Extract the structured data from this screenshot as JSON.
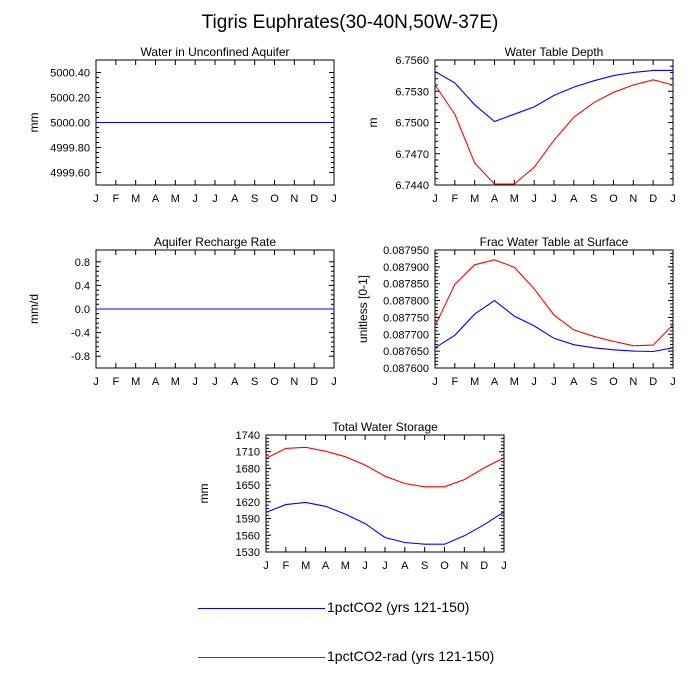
{
  "title": "Tigris Euphrates(30-40N,50W-37E)",
  "colors": {
    "blue": "#0000ff",
    "red": "#ff0000"
  },
  "legend": [
    {
      "label": "1pctCO2 (yrs 121-150)",
      "color": "#0000ff"
    },
    {
      "label": "1pctCO2-rad (yrs 121-150)",
      "color": "#ff0000"
    }
  ],
  "chart_data": [
    {
      "type": "line",
      "title": "Water in Unconfined Aquifer",
      "ylabel": "mm",
      "categories": [
        "J",
        "F",
        "M",
        "A",
        "M",
        "J",
        "J",
        "A",
        "S",
        "O",
        "N",
        "D",
        "J"
      ],
      "ylim": [
        4999.5,
        5000.5
      ],
      "yticks": [
        4999.6,
        4999.8,
        5000.0,
        5000.2,
        5000.4
      ],
      "ytick_labels": [
        "4999.60",
        "4999.80",
        "5000.00",
        "5000.20",
        "5000.40"
      ],
      "series": [
        {
          "name": "1pctCO2 (yrs 121-150)",
          "color": "#0000ff",
          "values": [
            5000,
            5000,
            5000,
            5000,
            5000,
            5000,
            5000,
            5000,
            5000,
            5000,
            5000,
            5000,
            5000
          ]
        },
        {
          "name": "1pctCO2-rad (yrs 121-150)",
          "color": "#ff0000",
          "values": [
            5000,
            5000,
            5000,
            5000,
            5000,
            5000,
            5000,
            5000,
            5000,
            5000,
            5000,
            5000,
            5000
          ]
        }
      ]
    },
    {
      "type": "line",
      "title": "Water Table Depth",
      "ylabel": "m",
      "categories": [
        "J",
        "F",
        "M",
        "A",
        "M",
        "J",
        "J",
        "A",
        "S",
        "O",
        "N",
        "D",
        "J"
      ],
      "ylim": [
        6.744,
        6.756
      ],
      "yticks": [
        6.744,
        6.747,
        6.75,
        6.753,
        6.756
      ],
      "ytick_labels": [
        "6.7440",
        "6.7470",
        "6.7500",
        "6.7530",
        "6.7560"
      ],
      "series": [
        {
          "name": "1pctCO2 (yrs 121-150)",
          "color": "#0000ff",
          "values": [
            6.7549,
            6.7538,
            6.7517,
            6.7501,
            6.7508,
            6.7515,
            6.7526,
            6.7534,
            6.754,
            6.7545,
            6.7548,
            6.755,
            6.755
          ]
        },
        {
          "name": "1pctCO2-rad (yrs 121-150)",
          "color": "#ff0000",
          "values": [
            6.7536,
            6.7508,
            6.7461,
            6.7441,
            6.7441,
            6.7457,
            6.7483,
            6.7505,
            6.7519,
            6.7529,
            6.7536,
            6.7541,
            6.7536
          ]
        }
      ]
    },
    {
      "type": "line",
      "title": "Aquifer Recharge Rate",
      "ylabel": "mm/d",
      "categories": [
        "J",
        "F",
        "M",
        "A",
        "M",
        "J",
        "J",
        "A",
        "S",
        "O",
        "N",
        "D",
        "J"
      ],
      "ylim": [
        -1.0,
        1.0
      ],
      "yticks": [
        -0.8,
        -0.4,
        0.0,
        0.4,
        0.8
      ],
      "ytick_labels": [
        "-0.8",
        "-0.4",
        "0.0",
        "0.4",
        "0.8"
      ],
      "series": [
        {
          "name": "1pctCO2 (yrs 121-150)",
          "color": "#0000ff",
          "values": [
            0,
            0,
            0,
            0,
            0,
            0,
            0,
            0,
            0,
            0,
            0,
            0,
            0
          ]
        },
        {
          "name": "1pctCO2-rad (yrs 121-150)",
          "color": "#ff0000",
          "values": [
            0,
            0,
            0,
            0,
            0,
            0,
            0,
            0,
            0,
            0,
            0,
            0,
            0
          ]
        }
      ]
    },
    {
      "type": "line",
      "title": "Frac Water Table at Surface",
      "ylabel": "unitless [0-1]",
      "categories": [
        "J",
        "F",
        "M",
        "A",
        "M",
        "J",
        "J",
        "A",
        "S",
        "O",
        "N",
        "D",
        "J"
      ],
      "ylim": [
        0.0876,
        0.0879
      ],
      "yticks": [
        0.0876,
        0.08765,
        0.0877,
        0.08775,
        0.0878,
        0.08785,
        0.0879,
        0.08795
      ],
      "ytick_labels": [
        "0.087600",
        "0.087650",
        "0.087700",
        "0.087750",
        "0.087800",
        "0.087850",
        "0.087900",
        "0.087950"
      ],
      "ylim_top": 0.08795,
      "series": [
        {
          "name": "1pctCO2 (yrs 121-150)",
          "color": "#0000ff",
          "values": [
            0.08766,
            0.087697,
            0.08776,
            0.0878,
            0.087754,
            0.087725,
            0.087688,
            0.087669,
            0.08766,
            0.087654,
            0.08765,
            0.087649,
            0.08766
          ]
        },
        {
          "name": "1pctCO2-rad (yrs 121-150)",
          "color": "#ff0000",
          "values": [
            0.087724,
            0.087848,
            0.087906,
            0.087921,
            0.087899,
            0.087835,
            0.087757,
            0.087713,
            0.087694,
            0.087679,
            0.087666,
            0.087668,
            0.087728
          ]
        }
      ]
    },
    {
      "type": "line",
      "title": "Total Water Storage",
      "ylabel": "mm",
      "categories": [
        "J",
        "F",
        "M",
        "A",
        "M",
        "J",
        "J",
        "A",
        "S",
        "O",
        "N",
        "D",
        "J"
      ],
      "ylim": [
        1530,
        1740
      ],
      "yticks": [
        1530,
        1560,
        1590,
        1620,
        1650,
        1680,
        1710,
        1740
      ],
      "ytick_labels": [
        "1530",
        "1560",
        "1590",
        "1620",
        "1650",
        "1680",
        "1710",
        "1740"
      ],
      "series": [
        {
          "name": "1pctCO2 (yrs 121-150)",
          "color": "#0000ff",
          "values": [
            1601,
            1615,
            1619,
            1612,
            1598,
            1581,
            1556,
            1547,
            1544,
            1544,
            1559,
            1579,
            1602
          ]
        },
        {
          "name": "1pctCO2-rad (yrs 121-150)",
          "color": "#ff0000",
          "values": [
            1698,
            1716,
            1718,
            1711,
            1701,
            1686,
            1666,
            1653,
            1647,
            1647,
            1660,
            1681,
            1699
          ]
        }
      ]
    }
  ]
}
